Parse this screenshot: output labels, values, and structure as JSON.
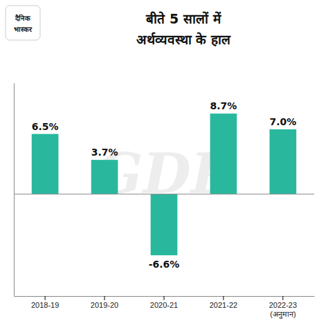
{
  "chart_data": {
    "type": "bar",
    "title": "बीते 5 सालों में\nअर्थव्यवस्था के हाल",
    "categories": [
      "2018-19",
      "2019-20",
      "2020-21",
      "2021-22",
      "2022-23\n(अनुमान)"
    ],
    "values": [
      6.5,
      3.7,
      -6.6,
      8.7,
      7.0
    ],
    "value_labels": [
      "6.5%",
      "3.7%",
      "-6.6%",
      "8.7%",
      "7.0%"
    ],
    "data_labels": true,
    "color": "#29b89e",
    "ylim": [
      -11,
      12
    ],
    "tick_labels": "x",
    "grid": false,
    "annotations": [
      "GDP",
      "दैनिक",
      "भास्कर"
    ]
  }
}
